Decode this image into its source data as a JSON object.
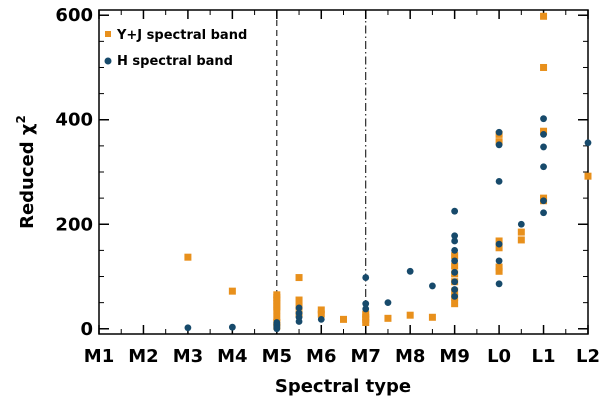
{
  "chart_data": {
    "type": "scatter",
    "xlabel": "Spectral type",
    "ylabel": "Reduced χ",
    "ylabel_superscript": "2",
    "x_categories": [
      "M1",
      "M2",
      "M3",
      "M4",
      "M5",
      "M6",
      "M7",
      "M8",
      "M9",
      "L0",
      "L1",
      "L2"
    ],
    "xlim": [
      1,
      12
    ],
    "ylim": [
      -10,
      610
    ],
    "y_ticks": [
      0,
      200,
      400,
      600
    ],
    "vertical_lines": [
      {
        "x": 5,
        "style": "dashed"
      },
      {
        "x": 7,
        "style": "dashdot"
      }
    ],
    "legend_position": "top-left",
    "series": [
      {
        "name": "Y+J spectral band",
        "color": "#E8901C",
        "marker": "square",
        "points": [
          [
            3,
            137
          ],
          [
            4,
            72
          ],
          [
            5,
            65
          ],
          [
            5,
            60
          ],
          [
            5,
            55
          ],
          [
            5,
            48
          ],
          [
            5,
            42
          ],
          [
            5,
            35
          ],
          [
            5,
            22
          ],
          [
            5,
            12
          ],
          [
            5,
            5
          ],
          [
            5.5,
            98
          ],
          [
            5.5,
            55
          ],
          [
            5.5,
            42
          ],
          [
            5.5,
            28
          ],
          [
            6,
            36
          ],
          [
            6,
            28
          ],
          [
            6.5,
            18
          ],
          [
            7,
            28
          ],
          [
            7,
            22
          ],
          [
            7,
            18
          ],
          [
            7,
            12
          ],
          [
            7.5,
            20
          ],
          [
            8,
            26
          ],
          [
            8.5,
            22
          ],
          [
            9,
            140
          ],
          [
            9,
            120
          ],
          [
            9,
            105
          ],
          [
            9,
            90
          ],
          [
            9,
            72
          ],
          [
            9,
            60
          ],
          [
            9,
            48
          ],
          [
            10,
            372
          ],
          [
            10,
            358
          ],
          [
            10,
            168
          ],
          [
            10,
            155
          ],
          [
            10,
            118
          ],
          [
            10,
            110
          ],
          [
            10.5,
            185
          ],
          [
            10.5,
            170
          ],
          [
            11,
            598
          ],
          [
            11,
            500
          ],
          [
            11,
            378
          ],
          [
            11,
            250
          ],
          [
            11,
            245
          ],
          [
            12,
            292
          ]
        ]
      },
      {
        "name": "H spectral band",
        "color": "#174A6B",
        "marker": "circle",
        "points": [
          [
            3,
            2
          ],
          [
            4,
            3
          ],
          [
            5,
            12
          ],
          [
            5,
            8
          ],
          [
            5,
            5
          ],
          [
            5,
            2
          ],
          [
            5,
            0
          ],
          [
            5.5,
            40
          ],
          [
            5.5,
            30
          ],
          [
            5.5,
            22
          ],
          [
            5.5,
            14
          ],
          [
            6,
            18
          ],
          [
            7,
            98
          ],
          [
            7,
            48
          ],
          [
            7,
            38
          ],
          [
            7.5,
            50
          ],
          [
            8,
            110
          ],
          [
            8.5,
            82
          ],
          [
            9,
            225
          ],
          [
            9,
            178
          ],
          [
            9,
            168
          ],
          [
            9,
            150
          ],
          [
            9,
            130
          ],
          [
            9,
            108
          ],
          [
            9,
            90
          ],
          [
            9,
            75
          ],
          [
            9,
            62
          ],
          [
            10,
            376
          ],
          [
            10,
            352
          ],
          [
            10,
            282
          ],
          [
            10,
            162
          ],
          [
            10,
            130
          ],
          [
            10,
            86
          ],
          [
            10.5,
            200
          ],
          [
            11,
            402
          ],
          [
            11,
            372
          ],
          [
            11,
            348
          ],
          [
            11,
            310
          ],
          [
            11,
            245
          ],
          [
            11,
            222
          ],
          [
            12,
            356
          ]
        ]
      }
    ]
  }
}
